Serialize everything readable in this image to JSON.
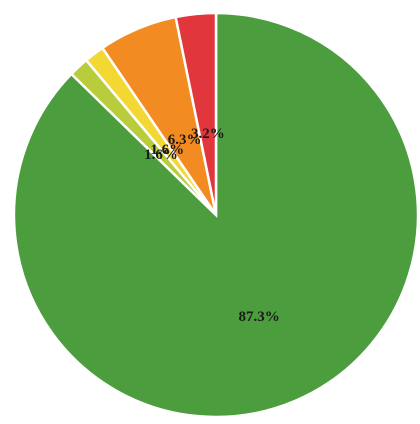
{
  "chart_data": {
    "type": "pie",
    "categories": [
      null,
      null,
      null,
      null,
      null
    ],
    "values": [
      87.3,
      1.6,
      1.6,
      6.3,
      3.2
    ],
    "value_labels": [
      "87.3%",
      "1.6%",
      "1.6%",
      "6.3%",
      "3.2%"
    ],
    "colors": [
      "#4c9d3d",
      "#b9cc3c",
      "#f3d733",
      "#f28b22",
      "#e1363b"
    ],
    "start_angle": 90,
    "direction": "clockwise"
  }
}
